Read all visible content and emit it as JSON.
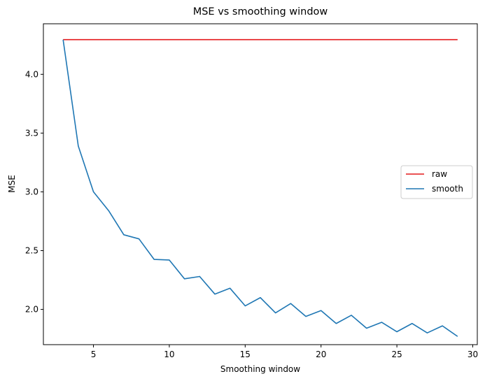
{
  "chart_data": {
    "type": "line",
    "title": "MSE vs smoothing window",
    "xlabel": "Smoothing window",
    "ylabel": "MSE",
    "xlim": [
      1.7,
      30.3
    ],
    "ylim": [
      1.7,
      4.43
    ],
    "xticks": [
      5,
      10,
      15,
      20,
      25,
      30
    ],
    "yticks": [
      2.0,
      2.5,
      3.0,
      3.5,
      4.0
    ],
    "ytick_labels": [
      "2.0",
      "2.5",
      "3.0",
      "3.5",
      "4.0"
    ],
    "grid": false,
    "legend_position": "center-right",
    "series": [
      {
        "name": "raw",
        "color": "#e41a1c",
        "x": [
          3,
          29
        ],
        "y": [
          4.295,
          4.295
        ]
      },
      {
        "name": "smooth",
        "color": "#1f77b4",
        "x": [
          3,
          4,
          5,
          6,
          7,
          8,
          9,
          10,
          11,
          12,
          13,
          14,
          15,
          16,
          17,
          18,
          19,
          20,
          21,
          22,
          23,
          24,
          25,
          26,
          27,
          28,
          29
        ],
        "y": [
          4.295,
          3.39,
          3.0,
          2.84,
          2.635,
          2.6,
          2.425,
          2.42,
          2.26,
          2.28,
          2.13,
          2.18,
          2.03,
          2.1,
          1.97,
          2.05,
          1.94,
          1.99,
          1.88,
          1.95,
          1.84,
          1.89,
          1.81,
          1.88,
          1.8,
          1.86,
          1.77
        ]
      }
    ]
  }
}
